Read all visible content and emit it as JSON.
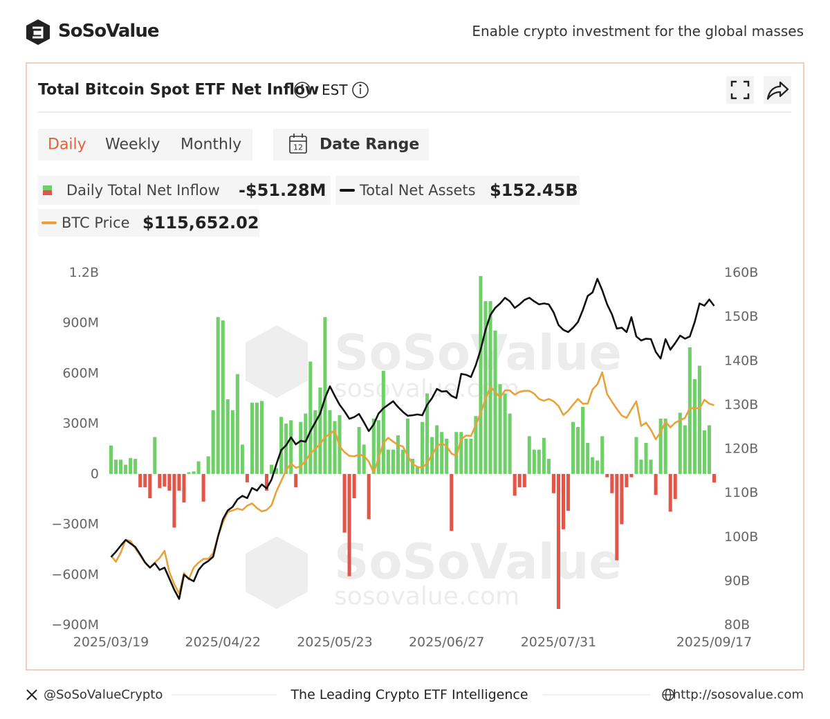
{
  "header": {
    "brand": "SoSoValue",
    "tagline": "Enable crypto investment for the global masses"
  },
  "chart_data": {
    "type": "bar",
    "title": "Total Bitcoin Spot ETF Net Inflow",
    "timezone": "EST",
    "periods": [
      "Daily",
      "Weekly",
      "Monthly"
    ],
    "active_period": "Daily",
    "date_range": {
      "label": "Date Range",
      "icon_day": "12"
    },
    "watermark": {
      "brand": "SoSoValue",
      "site": "sosovalue.com"
    },
    "grid": false,
    "categories": [
      "2025/03/19",
      null,
      null,
      null,
      null,
      null,
      null,
      null,
      null,
      null,
      null,
      null,
      null,
      null,
      null,
      null,
      null,
      null,
      null,
      null,
      null,
      null,
      null,
      "2025/04/22",
      null,
      null,
      null,
      null,
      null,
      null,
      null,
      null,
      null,
      null,
      null,
      null,
      null,
      null,
      null,
      null,
      null,
      null,
      null,
      null,
      null,
      null,
      "2025/05/23",
      null,
      null,
      null,
      null,
      null,
      null,
      null,
      null,
      null,
      null,
      null,
      null,
      null,
      null,
      null,
      null,
      null,
      null,
      null,
      null,
      null,
      null,
      "2025/06/27",
      null,
      null,
      null,
      null,
      null,
      null,
      null,
      null,
      null,
      null,
      null,
      null,
      null,
      null,
      null,
      null,
      null,
      null,
      null,
      null,
      null,
      null,
      "2025/07/31",
      null,
      null,
      null,
      null,
      null,
      null,
      null,
      null,
      null,
      null,
      null,
      null,
      null,
      null,
      null,
      null,
      null,
      null,
      null,
      null,
      null,
      null,
      null,
      null,
      null,
      null,
      null,
      null,
      null,
      null,
      null,
      "2025/09/17"
    ],
    "ylim": [
      -900,
      1200
    ],
    "yticks": [
      {
        "value": 1200,
        "label": "1.2B"
      },
      {
        "value": 900,
        "label": "900M"
      },
      {
        "value": 600,
        "label": "600M"
      },
      {
        "value": 300,
        "label": "300M"
      },
      0,
      {
        "value": -300,
        "label": "−300M"
      },
      {
        "value": -600,
        "label": "−600M"
      },
      {
        "value": -900,
        "label": "−900M"
      }
    ],
    "y2lim": [
      80,
      160
    ],
    "y2ticks": [
      {
        "value": 160,
        "label": "160B"
      },
      {
        "value": 150,
        "label": "150B"
      },
      {
        "value": 140,
        "label": "140B"
      },
      {
        "value": 130,
        "label": "130B"
      },
      {
        "value": 120,
        "label": "120B"
      },
      {
        "value": 110,
        "label": "110B"
      },
      {
        "value": 100,
        "label": "100B"
      },
      {
        "value": 90,
        "label": "90B"
      },
      {
        "value": 80,
        "label": "80B"
      }
    ],
    "y3lim": [
      69400,
      143600
    ],
    "series": [
      {
        "name": "Daily Total Net Inflow",
        "type": "bar",
        "positive_color": "#6fcf69",
        "negative_color": "#e2564a",
        "latest_label": "-$51.28M",
        "values": [
          170,
          85,
          85,
          55,
          95,
          90,
          -80,
          -80,
          -145,
          220,
          -85,
          -75,
          -100,
          -320,
          -100,
          -170,
          10,
          15,
          75,
          -165,
          105,
          380,
          935,
          915,
          445,
          380,
          595,
          175,
          -50,
          425,
          425,
          435,
          -100,
          55,
          35,
          340,
          300,
          320,
          -80,
          310,
          360,
          670,
          380,
          515,
          935,
          380,
          315,
          350,
          -350,
          -610,
          -145,
          280,
          175,
          -270,
          330,
          320,
          615,
          145,
          145,
          230,
          145,
          330,
          90,
          40,
          310,
          480,
          220,
          290,
          250,
          210,
          -340,
          250,
          250,
          210,
          210,
          345,
          1180,
          1030,
          1030,
          855,
          535,
          480,
          360,
          -130,
          -80,
          -80,
          225,
          145,
          145,
          215,
          90,
          -115,
          -805,
          -330,
          -220,
          310,
          280,
          400,
          185,
          100,
          80,
          225,
          -20,
          -115,
          -515,
          -300,
          -80,
          -20,
          220,
          85,
          185,
          85,
          -125,
          330,
          330,
          -225,
          -150,
          365,
          290,
          755,
          565,
          645,
          260,
          290,
          -51.28
        ]
      },
      {
        "name": "Total Net Assets",
        "type": "line",
        "axis": "y2",
        "color": "#111111",
        "latest_label": "$152.45B",
        "values": [
          95.4,
          96.6,
          98.0,
          99.3,
          98.5,
          97.7,
          96.0,
          94.2,
          93.0,
          94.0,
          92.5,
          93.0,
          90.5,
          88.0,
          85.9,
          91.4,
          90.5,
          89.9,
          92.5,
          93.8,
          94.5,
          95.5,
          100.1,
          104.0,
          106.0,
          106.8,
          108.5,
          109.3,
          108.8,
          111.1,
          110.5,
          111.9,
          111.0,
          113.0,
          116.5,
          119.7,
          120.8,
          122.6,
          121.0,
          121.8,
          121.6,
          124.0,
          126.0,
          128.0,
          131.5,
          134.2,
          132.0,
          130.0,
          128.5,
          126.8,
          127.2,
          127.9,
          126.0,
          124.0,
          125.5,
          128.0,
          129.2,
          130.0,
          130.8,
          129.5,
          128.4,
          127.5,
          127.6,
          127.8,
          127.6,
          130.0,
          131.5,
          133.6,
          133.0,
          133.1,
          132.0,
          131.5,
          137.0,
          136.8,
          136.3,
          139.0,
          142.5,
          147.0,
          150.4,
          152.0,
          153.0,
          154.3,
          153.5,
          152.0,
          152.8,
          153.8,
          154.3,
          153.5,
          152.8,
          153.0,
          152.8,
          151.0,
          148.1,
          147.0,
          146.5,
          147.5,
          148.8,
          151.5,
          154.7,
          155.5,
          158.6,
          156.0,
          152.8,
          150.5,
          147.3,
          147.5,
          146.5,
          149.9,
          145.5,
          144.6,
          145.0,
          144.9,
          142.0,
          140.5,
          144.9,
          142.5,
          144.0,
          145.7,
          145.0,
          145.5,
          148.8,
          153.0,
          152.5,
          153.9,
          152.45
        ]
      },
      {
        "name": "BTC Price",
        "type": "line",
        "axis": "y3",
        "color": "#e9a23b",
        "latest_label": "$115,652.02",
        "values": [
          84000,
          82700,
          84600,
          87300,
          87100,
          85500,
          84000,
          82500,
          81500,
          82500,
          83500,
          85000,
          80500,
          78000,
          76000,
          80300,
          79000,
          81500,
          82500,
          83300,
          83300,
          84500,
          88000,
          91000,
          93200,
          93500,
          93900,
          93600,
          94500,
          95000,
          94000,
          93300,
          93600,
          94600,
          97500,
          99700,
          102000,
          103400,
          102500,
          102800,
          104000,
          105500,
          106500,
          107500,
          109000,
          109600,
          110400,
          107000,
          105800,
          105000,
          104900,
          105300,
          105000,
          103800,
          101500,
          104500,
          107800,
          108800,
          108000,
          107300,
          107000,
          105000,
          103300,
          102700,
          102500,
          103500,
          105200,
          107000,
          107700,
          107000,
          105500,
          105000,
          108500,
          109300,
          109200,
          111500,
          114000,
          117000,
          119500,
          118500,
          117300,
          118800,
          118800,
          117900,
          118500,
          118700,
          118700,
          118100,
          117000,
          116600,
          117000,
          116500,
          115500,
          113600,
          114500,
          115800,
          117000,
          116000,
          116000,
          119000,
          120100,
          122600,
          118000,
          116400,
          114900,
          113500,
          113000,
          114800,
          116500,
          111300,
          112000,
          110500,
          108500,
          110000,
          112200,
          111000,
          112000,
          112500,
          113000,
          115000,
          115100,
          115000,
          116800,
          116000,
          115652.02
        ]
      }
    ]
  },
  "footer": {
    "handle": "@SoSoValueCrypto",
    "slogan": "The Leading Crypto ETF Intelligence",
    "url": "http://sosovalue.com"
  }
}
